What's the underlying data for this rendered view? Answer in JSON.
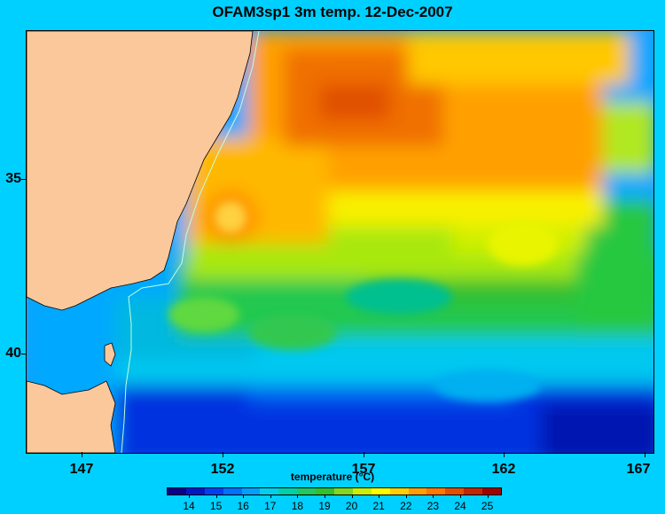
{
  "title": "OFAM3sp1 3m temp. 12-Dec-2007",
  "colorbar": {
    "label": "temperature (°C)",
    "ticks": [
      "14",
      "15",
      "16",
      "17",
      "18",
      "19",
      "20",
      "21",
      "22",
      "23",
      "24",
      "25"
    ],
    "colors": [
      "#08008f",
      "#0018c8",
      "#0040f0",
      "#0070ff",
      "#00a0ff",
      "#00d0f0",
      "#00d0a8",
      "#20c860",
      "#30c030",
      "#80d820",
      "#c8f000",
      "#ffff00",
      "#ffd000",
      "#ffa000",
      "#ff7800",
      "#e05000",
      "#c02800",
      "#a00000"
    ]
  },
  "x_axis": {
    "ticks": [
      "147",
      "152",
      "157",
      "162",
      "167"
    ]
  },
  "y_axis": {
    "ticks": [
      "35",
      "40"
    ]
  },
  "colors": {
    "background": "#00d0ff",
    "land": "#fac89b"
  }
}
